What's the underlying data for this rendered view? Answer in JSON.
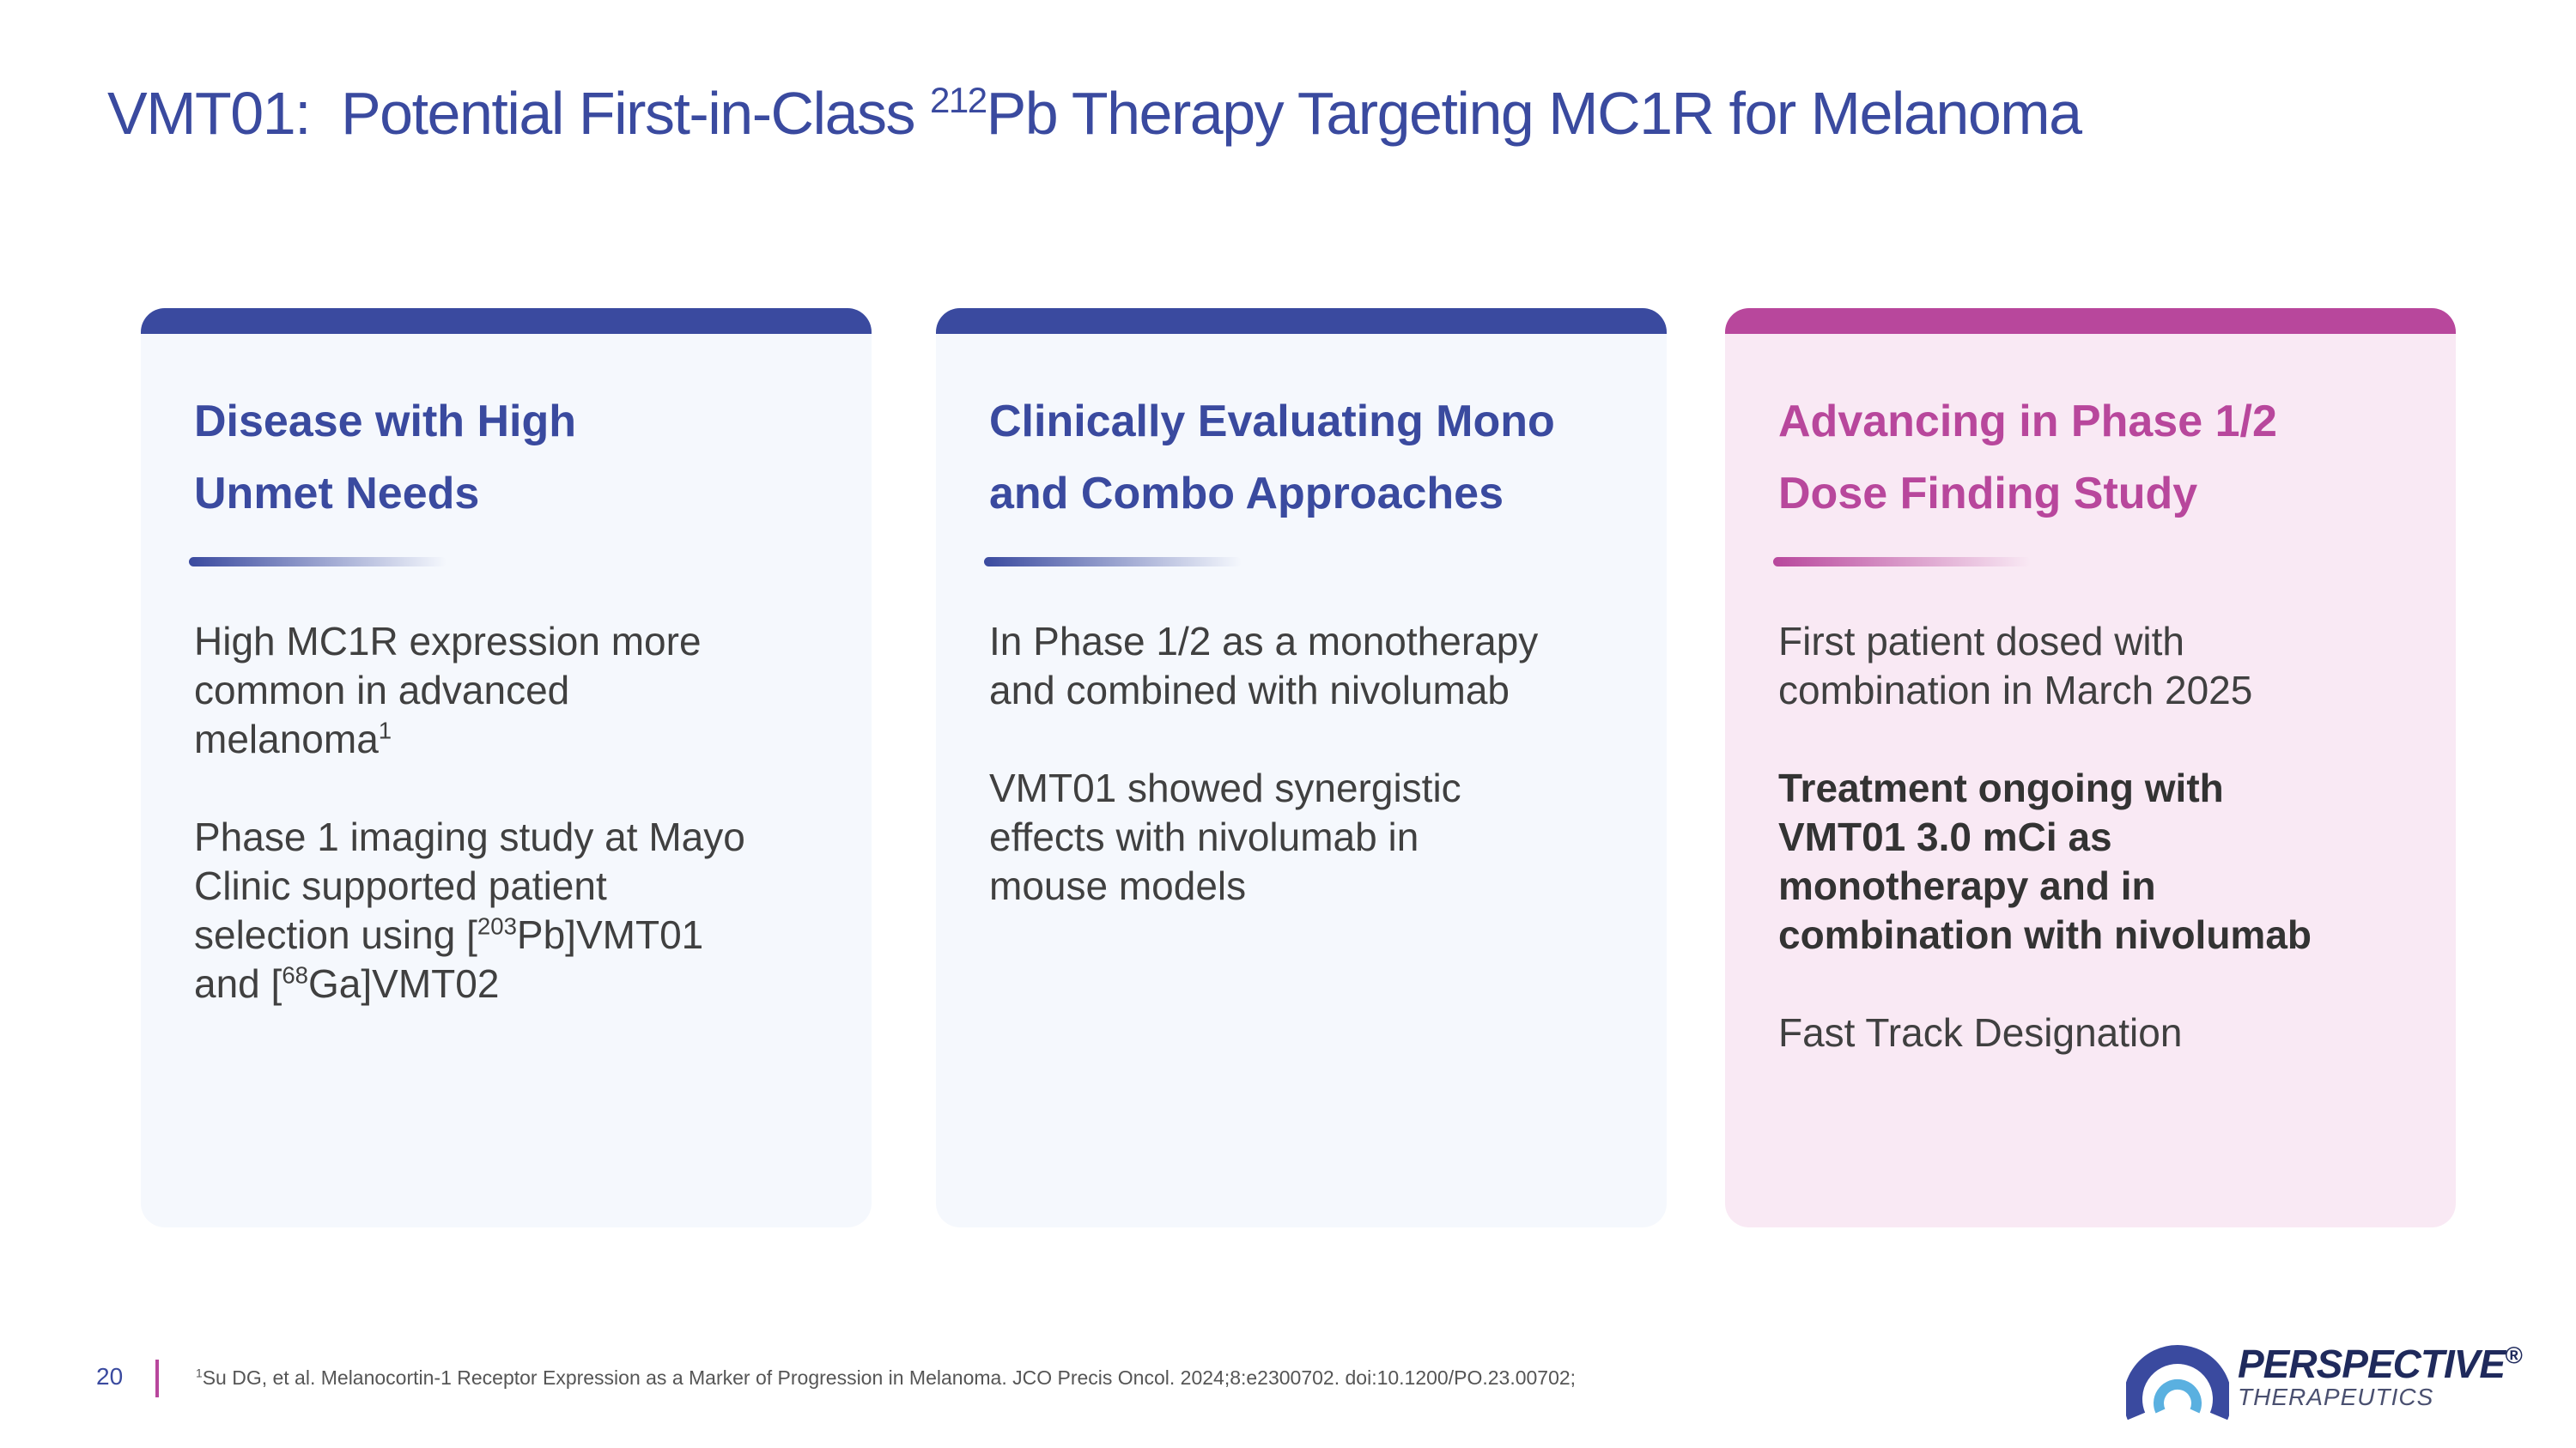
{
  "header": {
    "title": [
      "VMT01:  Potential First-in-Class ",
      {
        "sup": "212"
      },
      "Pb Therapy Targeting MC1R for Melanoma"
    ]
  },
  "cards": [
    {
      "heading": [
        "Disease with High",
        "Unmet Needs"
      ],
      "paragraphs": [
        {
          "lines": [
            "High MC1R expression more",
            "common in advanced",
            [
              "melanoma",
              {
                "sup": "1"
              }
            ]
          ]
        },
        {
          "lines": [
            "Phase 1 imaging study at Mayo",
            "Clinic supported patient",
            [
              "selection using [",
              {
                "sup": "203"
              },
              "Pb]VMT01"
            ],
            [
              "and [",
              {
                "sup": "68"
              },
              "Ga]VMT02"
            ]
          ]
        }
      ]
    },
    {
      "heading": [
        "Clinically Evaluating Mono",
        "and Combo Approaches"
      ],
      "paragraphs": [
        {
          "lines": [
            "In Phase 1/2 as a monotherapy",
            "and combined with nivolumab"
          ]
        },
        {
          "lines": [
            "VMT01 showed synergistic",
            "effects with nivolumab in",
            "mouse models"
          ]
        }
      ]
    },
    {
      "heading": [
        "Advancing in Phase 1/2",
        "Dose Finding Study"
      ],
      "paragraphs": [
        {
          "lines": [
            "First patient dosed with",
            "combination in March 2025"
          ]
        },
        {
          "bold": true,
          "lines": [
            "Treatment ongoing with",
            "VMT01 3.0 mCi as",
            "monotherapy and in",
            "combination with nivolumab"
          ]
        },
        {
          "lines": [
            "Fast Track Designation"
          ]
        }
      ]
    }
  ],
  "footer": {
    "page_number": "20",
    "footnote": [
      {
        "sup": "1"
      },
      "Su DG, et al. Melanocortin-1 Receptor Expression as a Marker of Progression in Melanoma. JCO Precis Oncol. 2024;8:e2300702. doi:10.1200/PO.23.00702;"
    ]
  },
  "logo": {
    "name": [
      "PERSPECTIVE",
      {
        "sup": "®"
      }
    ],
    "tagline": "THERAPEUTICS"
  }
}
